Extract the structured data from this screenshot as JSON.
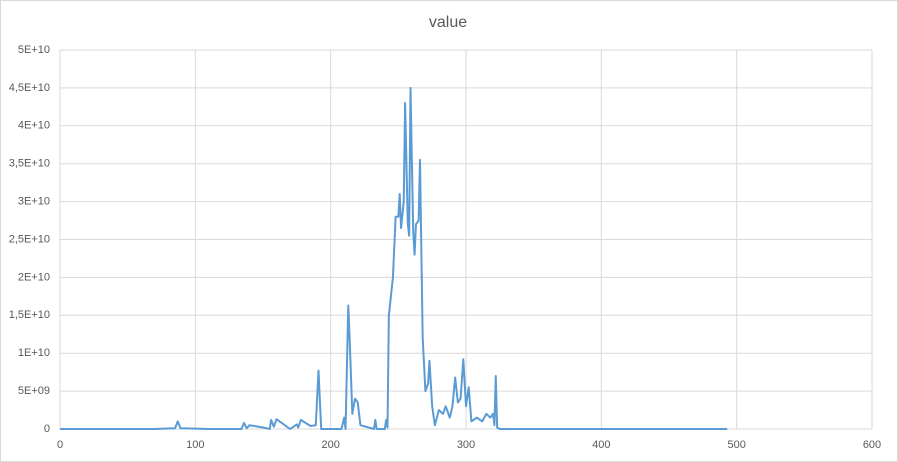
{
  "chart_data": {
    "type": "line",
    "title": "value",
    "x": [
      0,
      70,
      85,
      87,
      89,
      110,
      134,
      136,
      138,
      140,
      150,
      155,
      156,
      158,
      160,
      170,
      175,
      176,
      178,
      185,
      189,
      191,
      193,
      208,
      210,
      211,
      213,
      214,
      216,
      218,
      220,
      222,
      232,
      233,
      234,
      240,
      241,
      242,
      243,
      246,
      248,
      250,
      251,
      252,
      254,
      255,
      257,
      258,
      259,
      261,
      262,
      263,
      265,
      266,
      268,
      270,
      272,
      273,
      275,
      277,
      280,
      283,
      285,
      288,
      290,
      292,
      294,
      296,
      298,
      300,
      302,
      304,
      308,
      312,
      315,
      318,
      320,
      321,
      322,
      323,
      325,
      493
    ],
    "series": [
      {
        "name": "value",
        "color": "#5b9bd5",
        "values": [
          0,
          0,
          100000000,
          1000000000,
          100000000,
          0,
          0,
          800000000,
          100000000,
          500000000,
          200000000,
          0,
          1200000000,
          300000000,
          1300000000,
          0,
          600000000,
          200000000,
          1200000000,
          400000000,
          500000000,
          7700000000,
          0,
          0,
          1500000000,
          0,
          16300000000,
          12000000000,
          2000000000,
          4000000000,
          3500000000,
          500000000,
          0,
          1200000000,
          0,
          0,
          1200000000,
          200000000,
          15000000000,
          20000000000,
          28000000000,
          28000000000,
          31000000000,
          26500000000,
          30000000000,
          43000000000,
          27000000000,
          25500000000,
          45000000000,
          26000000000,
          23000000000,
          27000000000,
          27500000000,
          35500000000,
          12000000000,
          5000000000,
          6000000000,
          9000000000,
          3000000000,
          500000000,
          2500000000,
          2000000000,
          3000000000,
          1500000000,
          3000000000,
          6800000000,
          3500000000,
          4000000000,
          9200000000,
          3000000000,
          5500000000,
          1000000000,
          1500000000,
          1000000000,
          2000000000,
          1500000000,
          2000000000,
          500000000,
          7000000000,
          200000000,
          0,
          0
        ]
      }
    ],
    "xlim": [
      0,
      600
    ],
    "xticks": [
      0,
      100,
      200,
      300,
      400,
      500,
      600
    ],
    "ylim": [
      0,
      50000000000
    ],
    "yticks": [
      0,
      {
        "value": 5000000000,
        "label": "5E+09"
      },
      {
        "value": 10000000000,
        "label": "1E+10"
      },
      {
        "value": 15000000000,
        "label": "1,5E+10"
      },
      {
        "value": 20000000000,
        "label": "2E+10"
      },
      {
        "value": 25000000000,
        "label": "2,5E+10"
      },
      {
        "value": 30000000000,
        "label": "3E+10"
      },
      {
        "value": 35000000000,
        "label": "3,5E+10"
      },
      {
        "value": 40000000000,
        "label": "4E+10"
      },
      {
        "value": 45000000000,
        "label": "4,5E+10"
      },
      {
        "value": 50000000000,
        "label": "5E+10"
      }
    ],
    "grid": true
  }
}
